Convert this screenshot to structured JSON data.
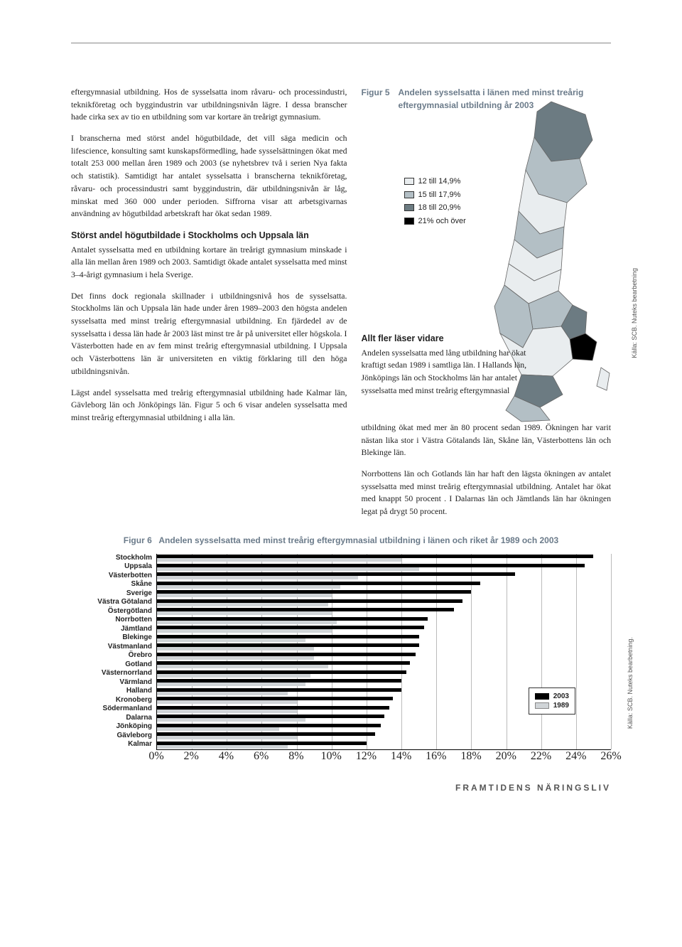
{
  "body": {
    "p1": "eftergymnasial utbildning. Hos de sysselsatta inom råvaru- och processindustri, teknikföretag och byggindustrin var utbildningsnivån lägre. I dessa branscher hade cirka sex av tio en utbildning som var kortare än treårigt gymnasium.",
    "p2": "I branscherna med störst andel högutbildade, det vill säga medicin och lifescience, konsulting samt kunskapsförmedling, hade sysselsättningen ökat med totalt 253 000 mellan åren 1989 och 2003 (se nyhetsbrev två i serien Nya fakta och statistik). Samtidigt har antalet sysselsatta i branscherna teknikföretag, råvaru- och processindustri samt byggindustrin, där utbildningsnivån är låg, minskat med 360 000 under perioden. Siffrorna visar att arbetsgivarnas användning av högutbildad arbetskraft har ökat sedan 1989.",
    "h1": "Störst andel högutbildade i Stockholms och Uppsala län",
    "p3": "Antalet sysselsatta med en utbildning kortare än treårigt gymnasium minskade i alla län mellan åren 1989 och 2003. Samtidigt ökade antalet sysselsatta med minst 3–4-årigt gymnasium i hela Sverige.",
    "p4": "Det finns dock regionala skillnader i utbildningsnivå hos de sysselsatta. Stockholms län och Uppsala län hade under åren 1989–2003 den högsta andelen sysselsatta med minst treårig eftergymnasial utbildning. En fjärdedel av de sysselsatta i dessa län hade år 2003 läst minst tre år på universitet eller högskola. I Västerbotten hade en av fem minst treårig eftergymnasial utbildning. I Uppsala och Västerbottens län är universiteten en viktig förklaring till den höga utbildningsnivån.",
    "p5": "Lägst andel sysselsatta med treårig eftergymnasial utbildning hade Kalmar län, Gävleborg län och Jönköpings län. Figur 5 och 6 visar andelen sysselsatta med minst treårig eftergymnasial utbildning i alla län."
  },
  "figure5": {
    "label": "Figur 5",
    "title": "Andelen sysselsatta i länen med minst treårig eftergymnasial utbildning år 2003",
    "legend": [
      {
        "label": "12 till 14,9%",
        "color": "#e9edef"
      },
      {
        "label": "15 till 17,9%",
        "color": "#b3bfc5"
      },
      {
        "label": "18 till 20,9%",
        "color": "#6c7b82"
      },
      {
        "label": "21% och över",
        "color": "#000000"
      }
    ],
    "source": "Källa: SCB. Nuteks bearbetning",
    "map_colors": {
      "north_top": "#6c7b82",
      "north_mid": "#b3bfc5",
      "north_low": "#e9edef",
      "mid1": "#b3bfc5",
      "mid2": "#e9edef",
      "central1": "#e9edef",
      "central2": "#b3bfc5",
      "stockholm": "#000000",
      "uppsala": "#6c7b82",
      "south1": "#b3bfc5",
      "south2": "#e9edef",
      "south3": "#6c7b82",
      "skane": "#b3bfc5",
      "gotland": "#e9edef"
    }
  },
  "right_body": {
    "h": "Allt fler läser vidare",
    "p1a": "Andelen sysselsatta med lång utbildning har ökat kraftigt sedan 1989 i samtliga län. I Hallands län, Jönköpings län och Stockholms län har antalet sysselsatta med minst treårig eftergymnasial",
    "p1b": "utbildning ökat med mer än 80 procent sedan 1989. Ökningen har varit nästan lika stor i Västra Götalands län, Skåne län, Västerbottens län och Blekinge län.",
    "p2": "Norrbottens län och Gotlands län har haft den lägsta ökningen av antalet sysselsatta med minst treårig eftergymnasial utbildning. Antalet har ökat med knappt 50 procent . I Dalarnas län och Jämtlands län har ökningen legat på drygt 50 procent."
  },
  "figure6": {
    "label": "Figur 6",
    "title": "Andelen sysselsatta med minst treårig eftergymnasial utbildning i länen och riket år 1989 och 2003",
    "xmax": 26,
    "xtick_step": 2,
    "xtick_labels": [
      "0%",
      "2%",
      "4%",
      "6%",
      "8%",
      "10%",
      "12%",
      "14%",
      "16%",
      "18%",
      "20%",
      "22%",
      "24%",
      "26%"
    ],
    "colors": {
      "2003": "#000000",
      "1989": "#d0d4d7"
    },
    "grid_color": "#bbbbbb",
    "regions": [
      {
        "name": "Stockholm",
        "v2003": 25.0,
        "v1989": 14.0
      },
      {
        "name": "Uppsala",
        "v2003": 24.5,
        "v1989": 15.0
      },
      {
        "name": "Västerbotten",
        "v2003": 20.5,
        "v1989": 11.5
      },
      {
        "name": "Skåne",
        "v2003": 18.5,
        "v1989": 10.5
      },
      {
        "name": "Sverige",
        "v2003": 18.0,
        "v1989": 10.0
      },
      {
        "name": "Västra Götaland",
        "v2003": 17.5,
        "v1989": 9.8
      },
      {
        "name": "Östergötland",
        "v2003": 17.0,
        "v1989": 10.0
      },
      {
        "name": "Norrbotten",
        "v2003": 15.5,
        "v1989": 10.3
      },
      {
        "name": "Jämtland",
        "v2003": 15.3,
        "v1989": 10.0
      },
      {
        "name": "Blekinge",
        "v2003": 15.0,
        "v1989": 8.5
      },
      {
        "name": "Västmanland",
        "v2003": 15.0,
        "v1989": 9.0
      },
      {
        "name": "Örebro",
        "v2003": 14.8,
        "v1989": 9.0
      },
      {
        "name": "Gotland",
        "v2003": 14.5,
        "v1989": 9.8
      },
      {
        "name": "Västernorrland",
        "v2003": 14.3,
        "v1989": 8.8
      },
      {
        "name": "Värmland",
        "v2003": 14.0,
        "v1989": 8.5
      },
      {
        "name": "Halland",
        "v2003": 14.0,
        "v1989": 7.5
      },
      {
        "name": "Kronoberg",
        "v2003": 13.5,
        "v1989": 8.0
      },
      {
        "name": "Södermanland",
        "v2003": 13.3,
        "v1989": 8.0
      },
      {
        "name": "Dalarna",
        "v2003": 13.0,
        "v1989": 8.5
      },
      {
        "name": "Jönköping",
        "v2003": 12.8,
        "v1989": 7.0
      },
      {
        "name": "Gävleborg",
        "v2003": 12.5,
        "v1989": 8.0
      },
      {
        "name": "Kalmar",
        "v2003": 12.0,
        "v1989": 7.5
      }
    ],
    "legend": [
      {
        "label": "2003",
        "color": "#000000"
      },
      {
        "label": "1989",
        "color": "#d0d4d7"
      }
    ],
    "source": "Källa: SCB. Nuteks bearbetning."
  },
  "footer": "FRAMTIDENS NÄRINGSLIV"
}
